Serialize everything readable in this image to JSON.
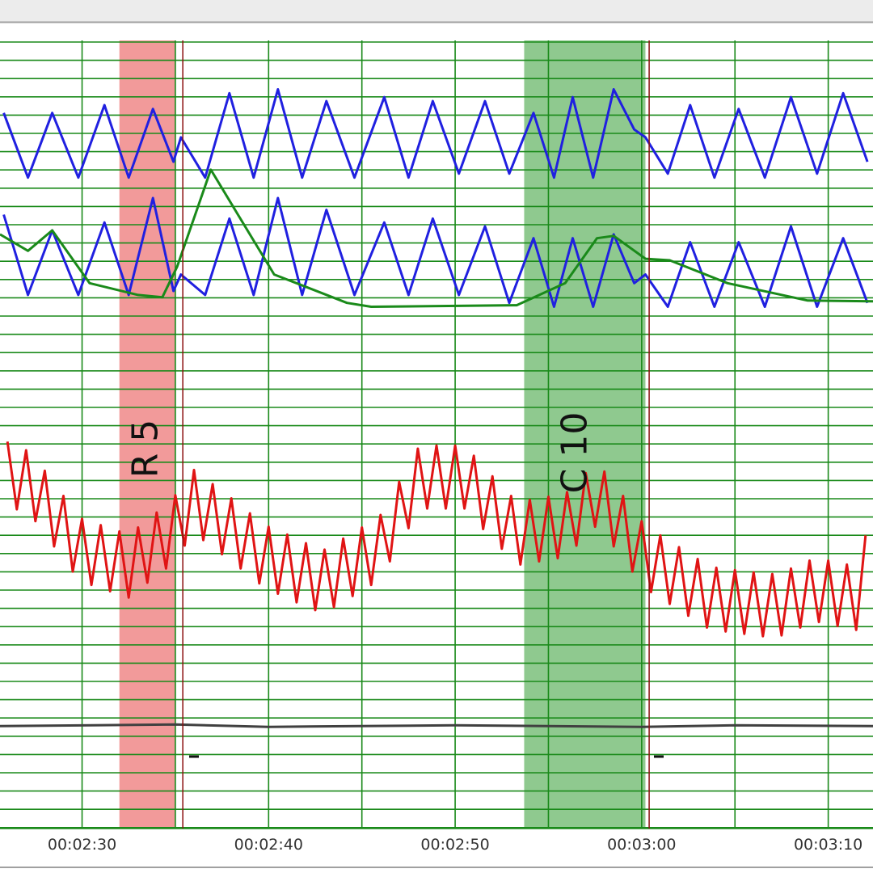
{
  "chart_data": {
    "type": "line",
    "xlim": [
      145.6,
      192.4
    ],
    "ylim": [
      0,
      100
    ],
    "xticks": [
      {
        "value": 150,
        "label": "00:02:30"
      },
      {
        "value": 160,
        "label": "00:02:40"
      },
      {
        "value": 170,
        "label": "00:02:50"
      },
      {
        "value": 180,
        "label": "00:03:00"
      },
      {
        "value": 190,
        "label": "00:03:10"
      }
    ],
    "grid": true,
    "regions": [
      {
        "label": "R 5",
        "start": 152.0,
        "end": 155.0,
        "color": "#f29a9a",
        "marker": 155.4
      },
      {
        "label": "C 10",
        "start": 173.7,
        "end": 180.2,
        "color": "#8fc98f",
        "marker": 180.4
      }
    ],
    "series": [
      {
        "color": "#2020e0",
        "x": [
          145.8,
          147.1,
          148.4,
          149.8,
          151.2,
          152.5,
          153.8,
          154.9,
          155.3,
          156.6,
          157.9,
          159.2,
          160.5,
          161.8,
          163.1,
          164.6,
          166.2,
          167.5,
          168.8,
          170.2,
          171.6,
          172.9,
          174.2,
          175.3,
          176.3,
          177.4,
          178.5,
          179.6,
          180.2,
          181.4,
          182.6,
          183.9,
          185.2,
          186.6,
          188.0,
          189.4,
          190.8,
          192.1
        ],
        "values": [
          90.8,
          82.6,
          90.8,
          82.6,
          91.8,
          82.6,
          91.3,
          84.6,
          87.7,
          82.6,
          93.3,
          82.6,
          93.8,
          82.6,
          92.3,
          82.6,
          92.8,
          82.6,
          92.3,
          83.1,
          92.3,
          83.1,
          90.8,
          82.6,
          92.8,
          82.6,
          93.8,
          88.7,
          87.7,
          83.1,
          91.8,
          82.6,
          91.3,
          82.6,
          92.8,
          83.1,
          93.3,
          84.6
        ]
      },
      {
        "color": "#2020e0",
        "x": [
          145.8,
          147.1,
          148.4,
          149.8,
          151.2,
          152.5,
          153.8,
          154.9,
          155.3,
          156.6,
          157.9,
          159.2,
          160.5,
          161.8,
          163.1,
          164.6,
          166.2,
          167.5,
          168.8,
          170.2,
          171.6,
          172.9,
          174.2,
          175.3,
          176.3,
          177.4,
          178.5,
          179.6,
          180.2,
          181.4,
          182.6,
          183.9,
          185.2,
          186.6,
          188.0,
          189.4,
          190.8,
          192.1
        ],
        "values": [
          77.9,
          67.7,
          75.9,
          67.7,
          76.9,
          67.7,
          80.0,
          68.2,
          70.3,
          67.7,
          77.4,
          67.7,
          80.0,
          67.7,
          78.5,
          67.7,
          76.9,
          67.7,
          77.4,
          67.7,
          76.4,
          66.7,
          74.9,
          66.2,
          74.9,
          66.2,
          75.4,
          69.2,
          70.3,
          66.2,
          74.4,
          66.2,
          74.4,
          66.2,
          76.4,
          66.2,
          74.9,
          66.7
        ]
      },
      {
        "color": "#1a8a1a",
        "x": [
          145.6,
          147.1,
          148.4,
          150.4,
          153.0,
          154.3,
          155.1,
          156.9,
          158.2,
          160.3,
          164.2,
          165.5,
          173.3,
          175.9,
          177.6,
          178.5,
          180.2,
          181.5,
          184.6,
          188.9,
          192.4
        ],
        "values": [
          75.4,
          73.3,
          75.9,
          69.2,
          67.7,
          67.4,
          71.3,
          83.6,
          78.5,
          70.3,
          66.7,
          66.2,
          66.4,
          69.2,
          74.9,
          75.2,
          72.3,
          72.1,
          69.2,
          67.0,
          66.9
        ]
      },
      {
        "color": "#e01414",
        "x": [
          146,
          146.5,
          147,
          147.5,
          148,
          148.5,
          149,
          149.5,
          150,
          150.5,
          151,
          151.5,
          152,
          152.5,
          153,
          153.5,
          154,
          154.5,
          155,
          155.5,
          156,
          156.5,
          157,
          157.5,
          158,
          158.5,
          159,
          159.5,
          160,
          160.5,
          161,
          161.5,
          162,
          162.5,
          163,
          163.5,
          164,
          164.5,
          165,
          165.5,
          166,
          166.5,
          167,
          167.5,
          168,
          168.5,
          169,
          169.5,
          170,
          170.5,
          171,
          171.5,
          172,
          172.5,
          173,
          173.5,
          174,
          174.5,
          175,
          175.5,
          176,
          176.5,
          177,
          177.5,
          178,
          178.5,
          179,
          179.5,
          180,
          180.5,
          181,
          181.5,
          182,
          182.5,
          183,
          183.5,
          184,
          184.5,
          185,
          185.5,
          186,
          186.5,
          187,
          187.5,
          188,
          188.5,
          189,
          189.5,
          190,
          190.5,
          191,
          191.5,
          192
        ],
        "values": [
          49.1,
          40.5,
          48.0,
          39.0,
          45.4,
          35.8,
          42.2,
          32.6,
          39.3,
          30.9,
          38.5,
          30.1,
          37.7,
          29.3,
          38.2,
          31.2,
          40.1,
          33.0,
          42.3,
          35.9,
          45.5,
          36.6,
          43.7,
          34.8,
          41.9,
          33.0,
          40.0,
          31.1,
          38.3,
          29.8,
          37.3,
          28.7,
          36.2,
          27.7,
          35.4,
          28.1,
          36.8,
          29.5,
          38.2,
          30.9,
          39.8,
          33.9,
          44.0,
          38.1,
          48.2,
          40.6,
          48.6,
          40.6,
          48.6,
          40.6,
          47.3,
          38.0,
          44.7,
          35.5,
          42.2,
          33.5,
          41.7,
          33.9,
          42.1,
          34.3,
          42.7,
          35.9,
          45.1,
          38.3,
          45.3,
          35.8,
          42.2,
          32.6,
          39.0,
          30.0,
          37.2,
          28.5,
          35.7,
          27.0,
          34.2,
          25.5,
          33.1,
          25.0,
          32.8,
          24.7,
          32.5,
          24.4,
          32.3,
          24.5,
          33.0,
          25.5,
          34.0,
          26.2,
          34.0,
          25.7,
          33.5,
          25.2,
          37.2
        ]
      },
      {
        "color": "#404040",
        "x": [
          145.6,
          155,
          160,
          170,
          180,
          185,
          192.4
        ],
        "values": [
          13.0,
          13.2,
          12.9,
          13.1,
          12.9,
          13.1,
          13.0
        ]
      }
    ]
  }
}
